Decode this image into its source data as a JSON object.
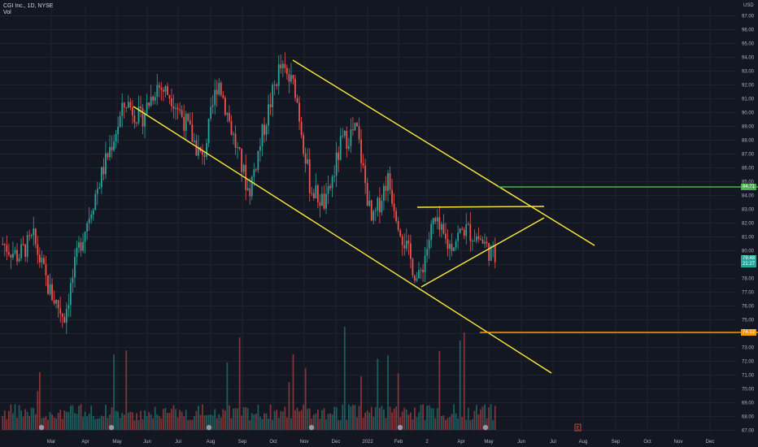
{
  "header": {
    "title": "CGI Inc., 1D, NYSE",
    "volume_label": "Vol",
    "currency": "USD"
  },
  "colors": {
    "up": "#26a69a",
    "down": "#ef5350",
    "trendline": "#ffeb3b",
    "resistance": "#4caf50",
    "support": "#ff9800",
    "grid": "#1f2331"
  },
  "price_tags": [
    {
      "value": "84.71",
      "color": "#4caf50"
    },
    {
      "value": "79.48",
      "color": "#26a69a"
    },
    {
      "value": "21:27",
      "color": "#26a69a"
    },
    {
      "value": "74.12",
      "color": "#ff9800"
    }
  ],
  "chart_data": {
    "type": "candlestick",
    "y_ticks": [
      "97.00",
      "96.00",
      "95.00",
      "94.00",
      "93.00",
      "92.00",
      "91.00",
      "90.00",
      "89.00",
      "88.00",
      "87.00",
      "86.00",
      "85.00",
      "84.00",
      "83.00",
      "82.00",
      "81.00",
      "80.00",
      "79.00",
      "78.00",
      "77.00",
      "76.00",
      "75.00",
      "74.00",
      "73.00",
      "72.00",
      "71.00",
      "70.00",
      "69.00",
      "68.00",
      "67.00"
    ],
    "x_ticks": [
      "Mar",
      "Apr",
      "May",
      "Jun",
      "Jul",
      "Aug",
      "Sep",
      "Oct",
      "Nov",
      "Dec",
      "2022",
      "Feb",
      "2",
      "Apr",
      "May",
      "Jun",
      "Jul",
      "Aug",
      "Sep",
      "Oct",
      "Nov",
      "Dec"
    ],
    "ylim": [
      67,
      97
    ],
    "anchor_prices": [
      80.5,
      79.6,
      80.9,
      77.2,
      75.2,
      80.4,
      84.0,
      87.5,
      90.8,
      89.5,
      92.0,
      91.2,
      89.0,
      86.5,
      92.5,
      88.2,
      84.2,
      89.0,
      93.3,
      91.8,
      84.5,
      83.3,
      87.8,
      88.8,
      81.8,
      85.3,
      81.0,
      77.7,
      82.1,
      80.3,
      81.6,
      80.9,
      79.48
    ],
    "horizontal_levels": [
      84.71,
      74.12
    ],
    "event_markers": [
      "E"
    ]
  }
}
